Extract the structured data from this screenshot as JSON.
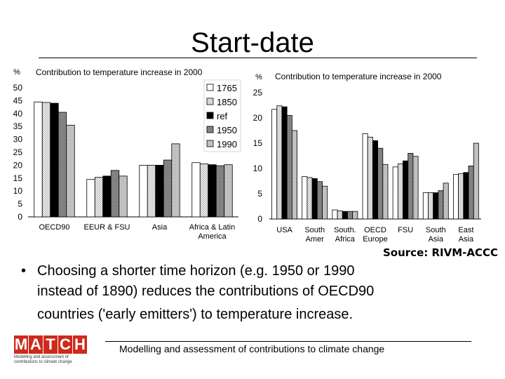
{
  "slide": {
    "title": "Start-date",
    "source": "Source: RIVM-ACCC",
    "bullet": "•",
    "bullet_lines": [
      "Choosing a shorter time horizon (e.g. 1950 or 1990",
      "instead of 1890) reduces the contributions of OECD90",
      "countries ('early emitters') to temperature increase."
    ],
    "footer": "Modelling and assessment of contributions to climate change",
    "logo_letters": [
      "M",
      "A",
      "T",
      "C",
      "H"
    ],
    "logo_sub_lines": [
      "Modelling and assessment of",
      "contributions to climate change"
    ]
  },
  "colors": {
    "s1765": "#ffffff",
    "s1850": "#e2e2e2",
    "ref": "#000000",
    "s1950": "#7e7e7e",
    "s1990": "#bcbcbc",
    "logo": "#cc2a1c"
  },
  "chart_data": [
    {
      "type": "bar",
      "unit": "%",
      "title": "Contribution to temperature increase in 2000",
      "categories": [
        "OECD90",
        "EEUR & FSU",
        "Asia",
        "Africa & Latin America"
      ],
      "ylim": [
        0,
        50
      ],
      "yticks": [
        0,
        5,
        10,
        15,
        20,
        25,
        30,
        35,
        40,
        45,
        50
      ],
      "legend_position": "top-right",
      "series": [
        {
          "name": "1765",
          "values": [
            44.5,
            14.5,
            20,
            21
          ]
        },
        {
          "name": "1850",
          "values": [
            44.3,
            15.3,
            20,
            20.5
          ]
        },
        {
          "name": "ref",
          "values": [
            44,
            15.8,
            20,
            20.2
          ]
        },
        {
          "name": "1950",
          "values": [
            40.5,
            18,
            22,
            19.8
          ]
        },
        {
          "name": "1990",
          "values": [
            35.5,
            15.8,
            28.3,
            20.2
          ]
        }
      ]
    },
    {
      "type": "bar",
      "unit": "%",
      "title": "Contribution to temperature increase in 2000",
      "categories": [
        "USA",
        "South Amer",
        "South. Africa",
        "OECD Europe",
        "FSU",
        "South Asia",
        "East Asia"
      ],
      "ylim": [
        0,
        25
      ],
      "yticks": [
        0,
        5,
        10,
        15,
        20,
        25
      ],
      "series": [
        {
          "name": "1765",
          "values": [
            21.7,
            8.4,
            1.8,
            16.9,
            10.3,
            5.2,
            8.8
          ]
        },
        {
          "name": "1850",
          "values": [
            22.4,
            8.2,
            1.6,
            16.2,
            10.9,
            5.2,
            9
          ]
        },
        {
          "name": "ref",
          "values": [
            22.2,
            8,
            1.5,
            15.5,
            11.5,
            5.2,
            9.2
          ]
        },
        {
          "name": "1950",
          "values": [
            20.5,
            7.4,
            1.5,
            14,
            13,
            5.6,
            10.5
          ]
        },
        {
          "name": "1990",
          "values": [
            17.5,
            6.5,
            1.5,
            10.8,
            12.4,
            7.1,
            15
          ]
        }
      ]
    }
  ]
}
